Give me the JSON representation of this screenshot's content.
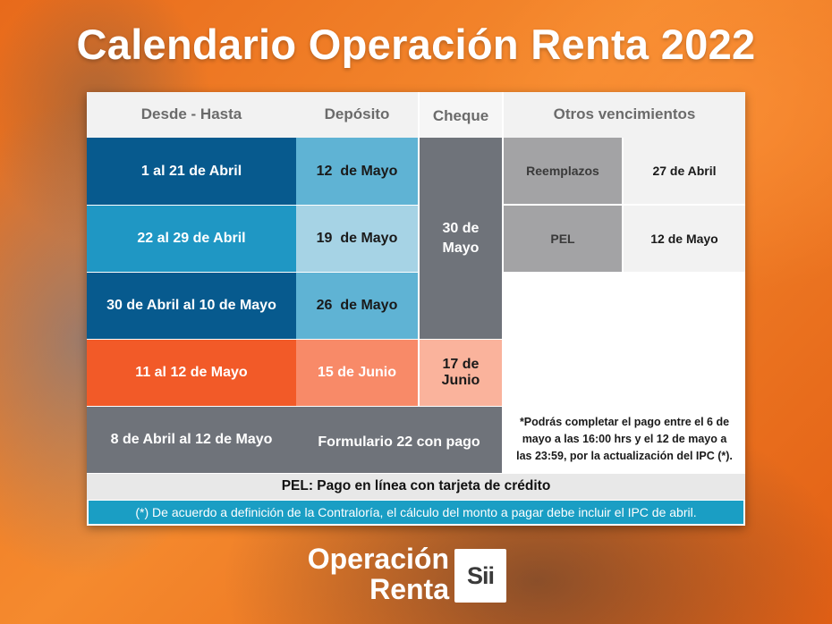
{
  "title": "Calendario Operación Renta 2022",
  "headers": {
    "range": "Desde - Hasta",
    "deposit": "Depósito",
    "cheque": "Cheque",
    "other": "Otros vencimientos"
  },
  "rows": [
    {
      "range": "1 al 21 de Abril",
      "deposit": "12  de Mayo"
    },
    {
      "range": "22 al 29 de Abril",
      "deposit": "19  de Mayo"
    },
    {
      "range": "30 de Abril al 10 de Mayo",
      "deposit": "26  de Mayo"
    },
    {
      "range": "11 al 12 de Mayo",
      "deposit": "15 de Junio"
    },
    {
      "range": "8 de Abril al 12 de Mayo",
      "deposit": "Formulario 22 con pago"
    }
  ],
  "cheque": {
    "group1": "30 de Mayo",
    "group2": "17 de Junio"
  },
  "other_deadlines": [
    {
      "label": "Reemplazos",
      "date": "27 de Abril"
    },
    {
      "label": "PEL",
      "date": "12 de Mayo"
    }
  ],
  "note": "*Podrás completar el pago entre el 6 de mayo a las 16:00 hrs y el 12 de mayo a las 23:59, por la actualización del IPC (*).",
  "pel_definition": "PEL: Pago en línea con tarjeta de crédito",
  "footnote": "(*) De acuerdo a definición de la Contraloría, el cálculo del monto a pagar debe incluir el IPC de abril.",
  "logo": {
    "line1": "Operación",
    "line2": "Renta",
    "badge": "Sii"
  },
  "colors": {
    "dark_blue": "#075a8e",
    "mid_blue": "#1f97c4",
    "light_blue": "#5fb3d4",
    "pale_blue": "#a6d3e5",
    "orange_red": "#f25a28",
    "salmon": "#f88a68",
    "light_salmon": "#fab39c",
    "gray": "#6f737a",
    "light_gray": "#a3a3a5",
    "teal_footer": "#1a9ec4"
  }
}
